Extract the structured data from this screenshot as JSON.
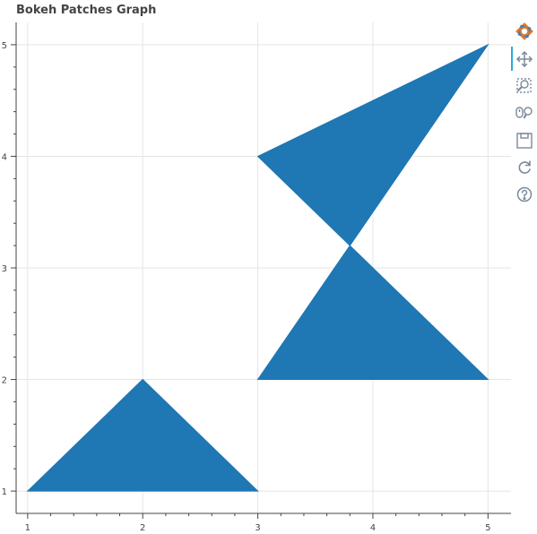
{
  "chart_data": {
    "type": "patches",
    "title": "Bokeh Patches Graph",
    "xlabel": "",
    "ylabel": "",
    "xlim": [
      0.9,
      5.2
    ],
    "ylim": [
      0.8,
      5.2
    ],
    "xticks": [
      1,
      2,
      3,
      4,
      5
    ],
    "yticks": [
      1,
      2,
      3,
      4,
      5
    ],
    "grid": true,
    "fill_color": "#1f77b4",
    "patches": [
      {
        "xs": [
          1,
          3,
          2
        ],
        "ys": [
          1,
          1,
          2
        ]
      },
      {
        "xs": [
          3,
          5,
          3.8
        ],
        "ys": [
          2,
          2,
          3.2
        ]
      },
      {
        "xs": [
          3,
          3.8,
          5
        ],
        "ys": [
          4,
          3.2,
          5
        ]
      }
    ]
  },
  "toolbar": {
    "tools": [
      {
        "name": "bokeh-logo-icon"
      },
      {
        "name": "pan-tool-icon"
      },
      {
        "name": "box-zoom-tool-icon"
      },
      {
        "name": "wheel-zoom-tool-icon"
      },
      {
        "name": "save-tool-icon"
      },
      {
        "name": "reset-tool-icon"
      },
      {
        "name": "help-tool-icon"
      }
    ],
    "active_tool": "pan-tool-icon"
  }
}
